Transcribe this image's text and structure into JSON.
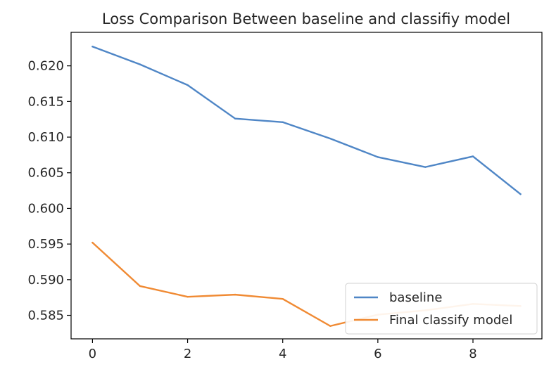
{
  "chart_data": {
    "type": "line",
    "title": "Loss Comparison Between baseline and classifiy model",
    "xlabel": "",
    "ylabel": "",
    "x": [
      0,
      1,
      2,
      3,
      4,
      5,
      6,
      7,
      8,
      9
    ],
    "series": [
      {
        "name": "baseline",
        "color": "#4f86c6",
        "values": [
          0.6227,
          0.6202,
          0.6173,
          0.6126,
          0.6121,
          0.6098,
          0.6072,
          0.6058,
          0.6073,
          0.602
        ]
      },
      {
        "name": "Final classify model",
        "color": "#f08a33",
        "values": [
          0.5952,
          0.5891,
          0.5876,
          0.5879,
          0.5873,
          0.5835,
          0.5851,
          0.5857,
          0.5866,
          0.5863
        ]
      }
    ],
    "xlim": [
      -0.45,
      9.45
    ],
    "ylim": [
      0.5817,
      0.6247
    ],
    "x_ticks": [
      0,
      2,
      4,
      6,
      8
    ],
    "x_tick_labels": [
      "0",
      "2",
      "4",
      "6",
      "8"
    ],
    "y_ticks": [
      0.585,
      0.59,
      0.595,
      0.6,
      0.605,
      0.61,
      0.615,
      0.62
    ],
    "y_tick_labels": [
      "0.585",
      "0.590",
      "0.595",
      "0.600",
      "0.605",
      "0.610",
      "0.615",
      "0.620"
    ],
    "grid": false,
    "legend_position": "lower right"
  }
}
